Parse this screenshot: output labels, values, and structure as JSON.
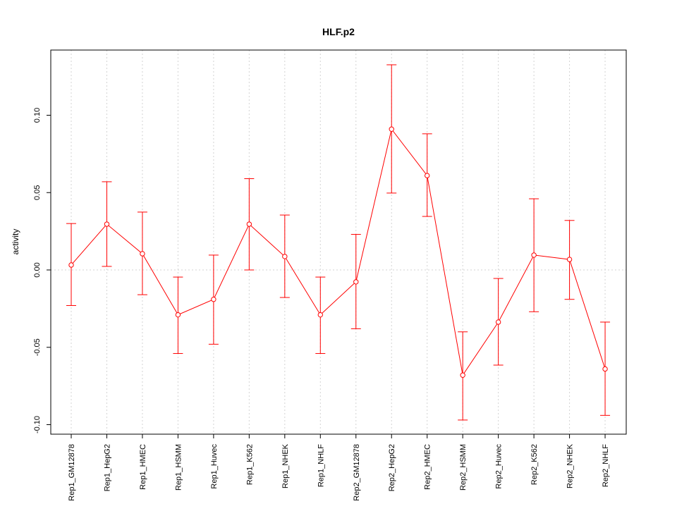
{
  "chart_data": {
    "type": "line",
    "title": "HLF.p2",
    "xlabel": "",
    "ylabel": "activity",
    "ylim": [
      -0.106,
      0.142
    ],
    "yticks": [
      -0.1,
      -0.05,
      0.0,
      0.05,
      0.1
    ],
    "ytick_labels": [
      "-0.10",
      "-0.05",
      "0.00",
      "0.05",
      "0.10"
    ],
    "grid": true,
    "categories": [
      "Rep1_GM12878",
      "Rep1_HepG2",
      "Rep1_HMEC",
      "Rep1_HSMM",
      "Rep1_Huvec",
      "Rep1_K562",
      "Rep1_NHEK",
      "Rep1_NHLF",
      "Rep2_GM12878",
      "Rep2_HepG2",
      "Rep2_HMEC",
      "Rep2_HSMM",
      "Rep2_Huvec",
      "Rep2_K562",
      "Rep2_NHEK",
      "Rep2_NHLF"
    ],
    "values": [
      0.0032,
      0.0296,
      0.0105,
      -0.029,
      -0.019,
      0.0296,
      0.0087,
      -0.029,
      -0.0077,
      0.091,
      0.061,
      -0.068,
      -0.0337,
      0.0096,
      0.0068,
      -0.064
    ],
    "error_upper": [
      0.03,
      0.057,
      0.0374,
      -0.0046,
      0.0096,
      0.059,
      0.0355,
      -0.0046,
      0.023,
      0.1326,
      0.088,
      -0.04,
      -0.0055,
      0.046,
      0.032,
      -0.0337
    ],
    "error_lower": [
      -0.023,
      0.0023,
      -0.016,
      -0.054,
      -0.048,
      0.0,
      -0.0178,
      -0.054,
      -0.038,
      0.0497,
      0.0346,
      -0.097,
      -0.0615,
      -0.027,
      -0.019,
      -0.094
    ],
    "color": "#ff0000"
  }
}
